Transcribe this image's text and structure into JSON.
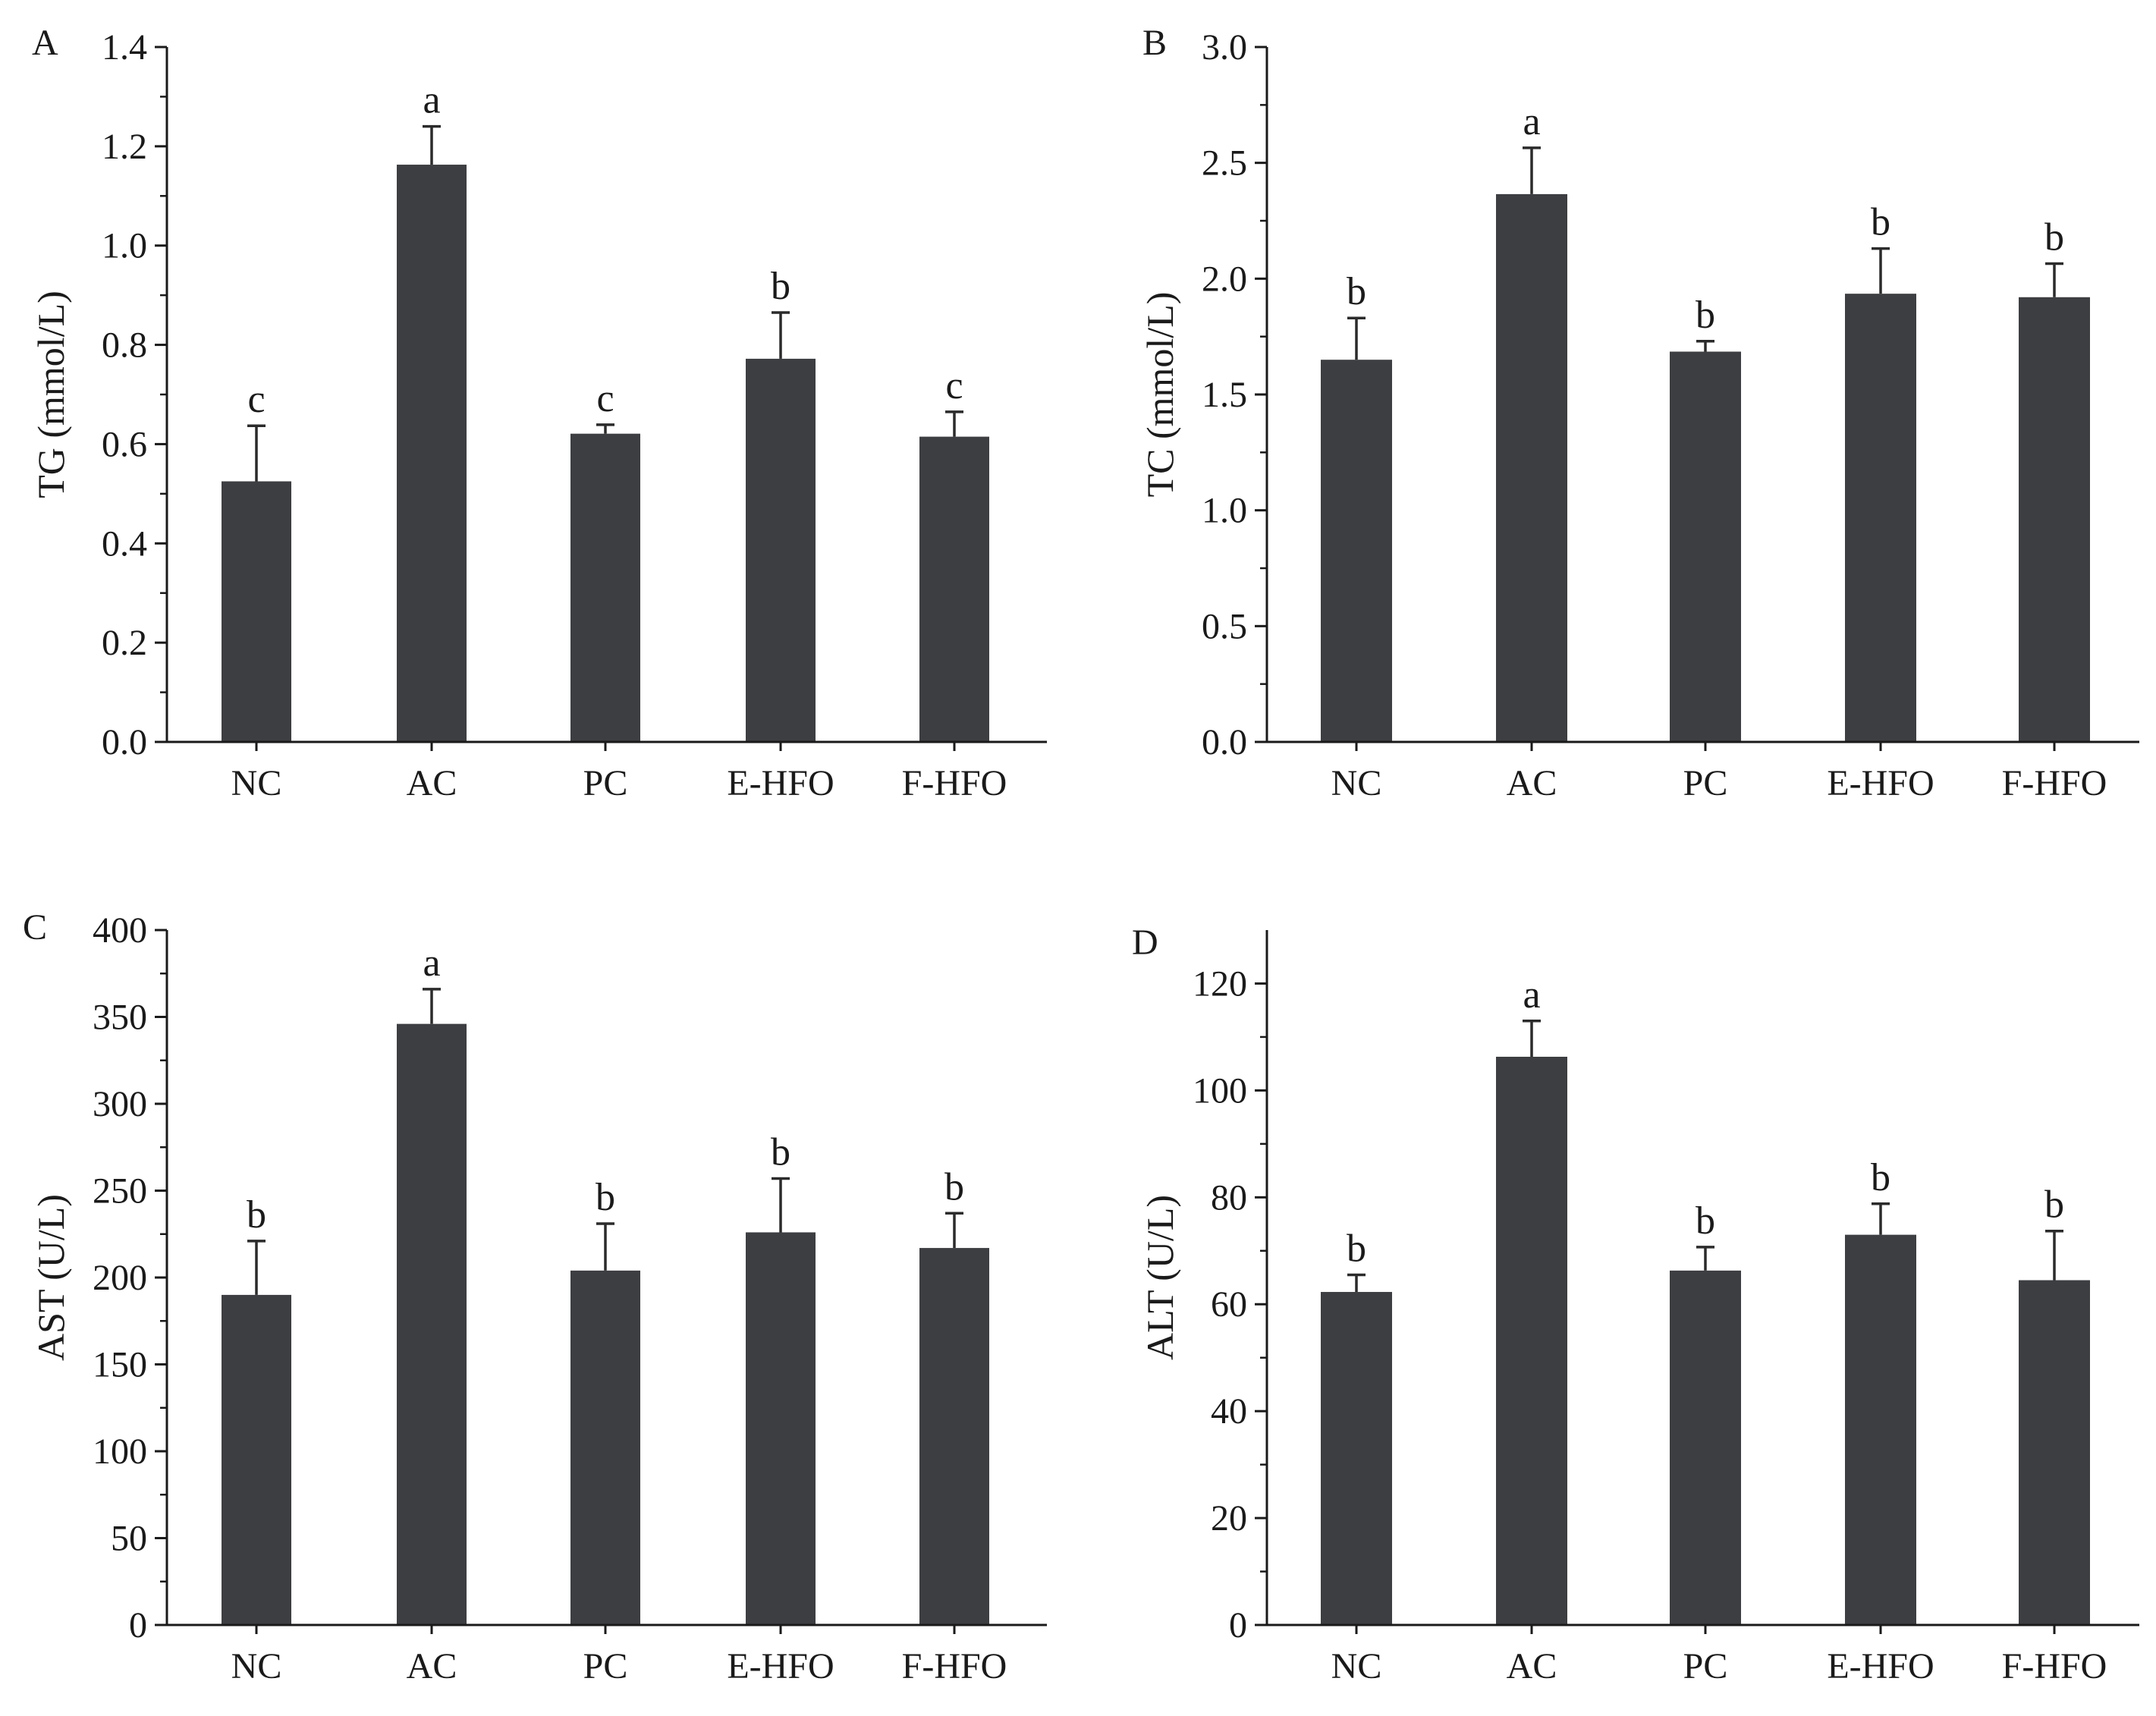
{
  "colors": {
    "bar": "#3d3e41",
    "axis": "#1a1a1a",
    "text": "#1a1a1a"
  },
  "chart_data": [
    {
      "type": "bar",
      "panel": "A",
      "categories": [
        "NC",
        "AC",
        "PC",
        "E-HFO",
        "F-HFO"
      ],
      "values": [
        0.525,
        1.163,
        0.621,
        0.772,
        0.615
      ],
      "errors": [
        0.112,
        0.077,
        0.018,
        0.093,
        0.05
      ],
      "significance": [
        "c",
        "a",
        "c",
        "b",
        "c"
      ],
      "ylabel": "TG (mmol/L)",
      "xlabel": "",
      "ylim": [
        0,
        1.4
      ],
      "yticks": [
        0,
        0.2,
        0.4,
        0.6,
        0.8,
        1.0,
        1.2,
        1.4
      ],
      "ytick_labels": [
        "0.0",
        "0.2",
        "0.4",
        "0.6",
        "0.8",
        "1.0",
        "1.2",
        "1.4"
      ]
    },
    {
      "type": "bar",
      "panel": "B",
      "categories": [
        "NC",
        "AC",
        "PC",
        "E-HFO",
        "F-HFO"
      ],
      "values": [
        1.65,
        2.365,
        1.685,
        1.935,
        1.92
      ],
      "errors": [
        0.18,
        0.2,
        0.045,
        0.195,
        0.145
      ],
      "significance": [
        "b",
        "a",
        "b",
        "b",
        "b"
      ],
      "ylabel": "TC (mmol/L)",
      "xlabel": "",
      "ylim": [
        0,
        3.0
      ],
      "yticks": [
        0,
        0.5,
        1.0,
        1.5,
        2.0,
        2.5,
        3.0
      ],
      "ytick_labels": [
        "0.0",
        "0.5",
        "1.0",
        "1.5",
        "2.0",
        "2.5",
        "3.0"
      ]
    },
    {
      "type": "bar",
      "panel": "C",
      "categories": [
        "NC",
        "AC",
        "PC",
        "E-HFO",
        "F-HFO"
      ],
      "values": [
        190,
        346,
        204,
        226,
        217
      ],
      "errors": [
        31,
        20,
        27,
        31,
        20
      ],
      "significance": [
        "b",
        "a",
        "b",
        "b",
        "b"
      ],
      "ylabel": "AST (U/L)",
      "xlabel": "",
      "ylim": [
        0,
        400
      ],
      "yticks": [
        0,
        50,
        100,
        150,
        200,
        250,
        300,
        350,
        400
      ],
      "ytick_labels": [
        "0",
        "50",
        "100",
        "150",
        "200",
        "250",
        "300",
        "350",
        "400"
      ]
    },
    {
      "type": "bar",
      "panel": "D",
      "categories": [
        "NC",
        "AC",
        "PC",
        "E-HFO",
        "F-HFO"
      ],
      "values": [
        62.3,
        106.3,
        66.3,
        73.0,
        64.5
      ],
      "errors": [
        3.2,
        6.7,
        4.4,
        5.8,
        9.2
      ],
      "significance": [
        "b",
        "a",
        "b",
        "b",
        "b"
      ],
      "ylabel": "ALT (U/L)",
      "xlabel": "",
      "ylim": [
        0,
        130
      ],
      "yticks": [
        0,
        20,
        40,
        60,
        80,
        100,
        120
      ],
      "ytick_labels": [
        "0",
        "20",
        "40",
        "60",
        "80",
        "100",
        "120"
      ]
    }
  ]
}
